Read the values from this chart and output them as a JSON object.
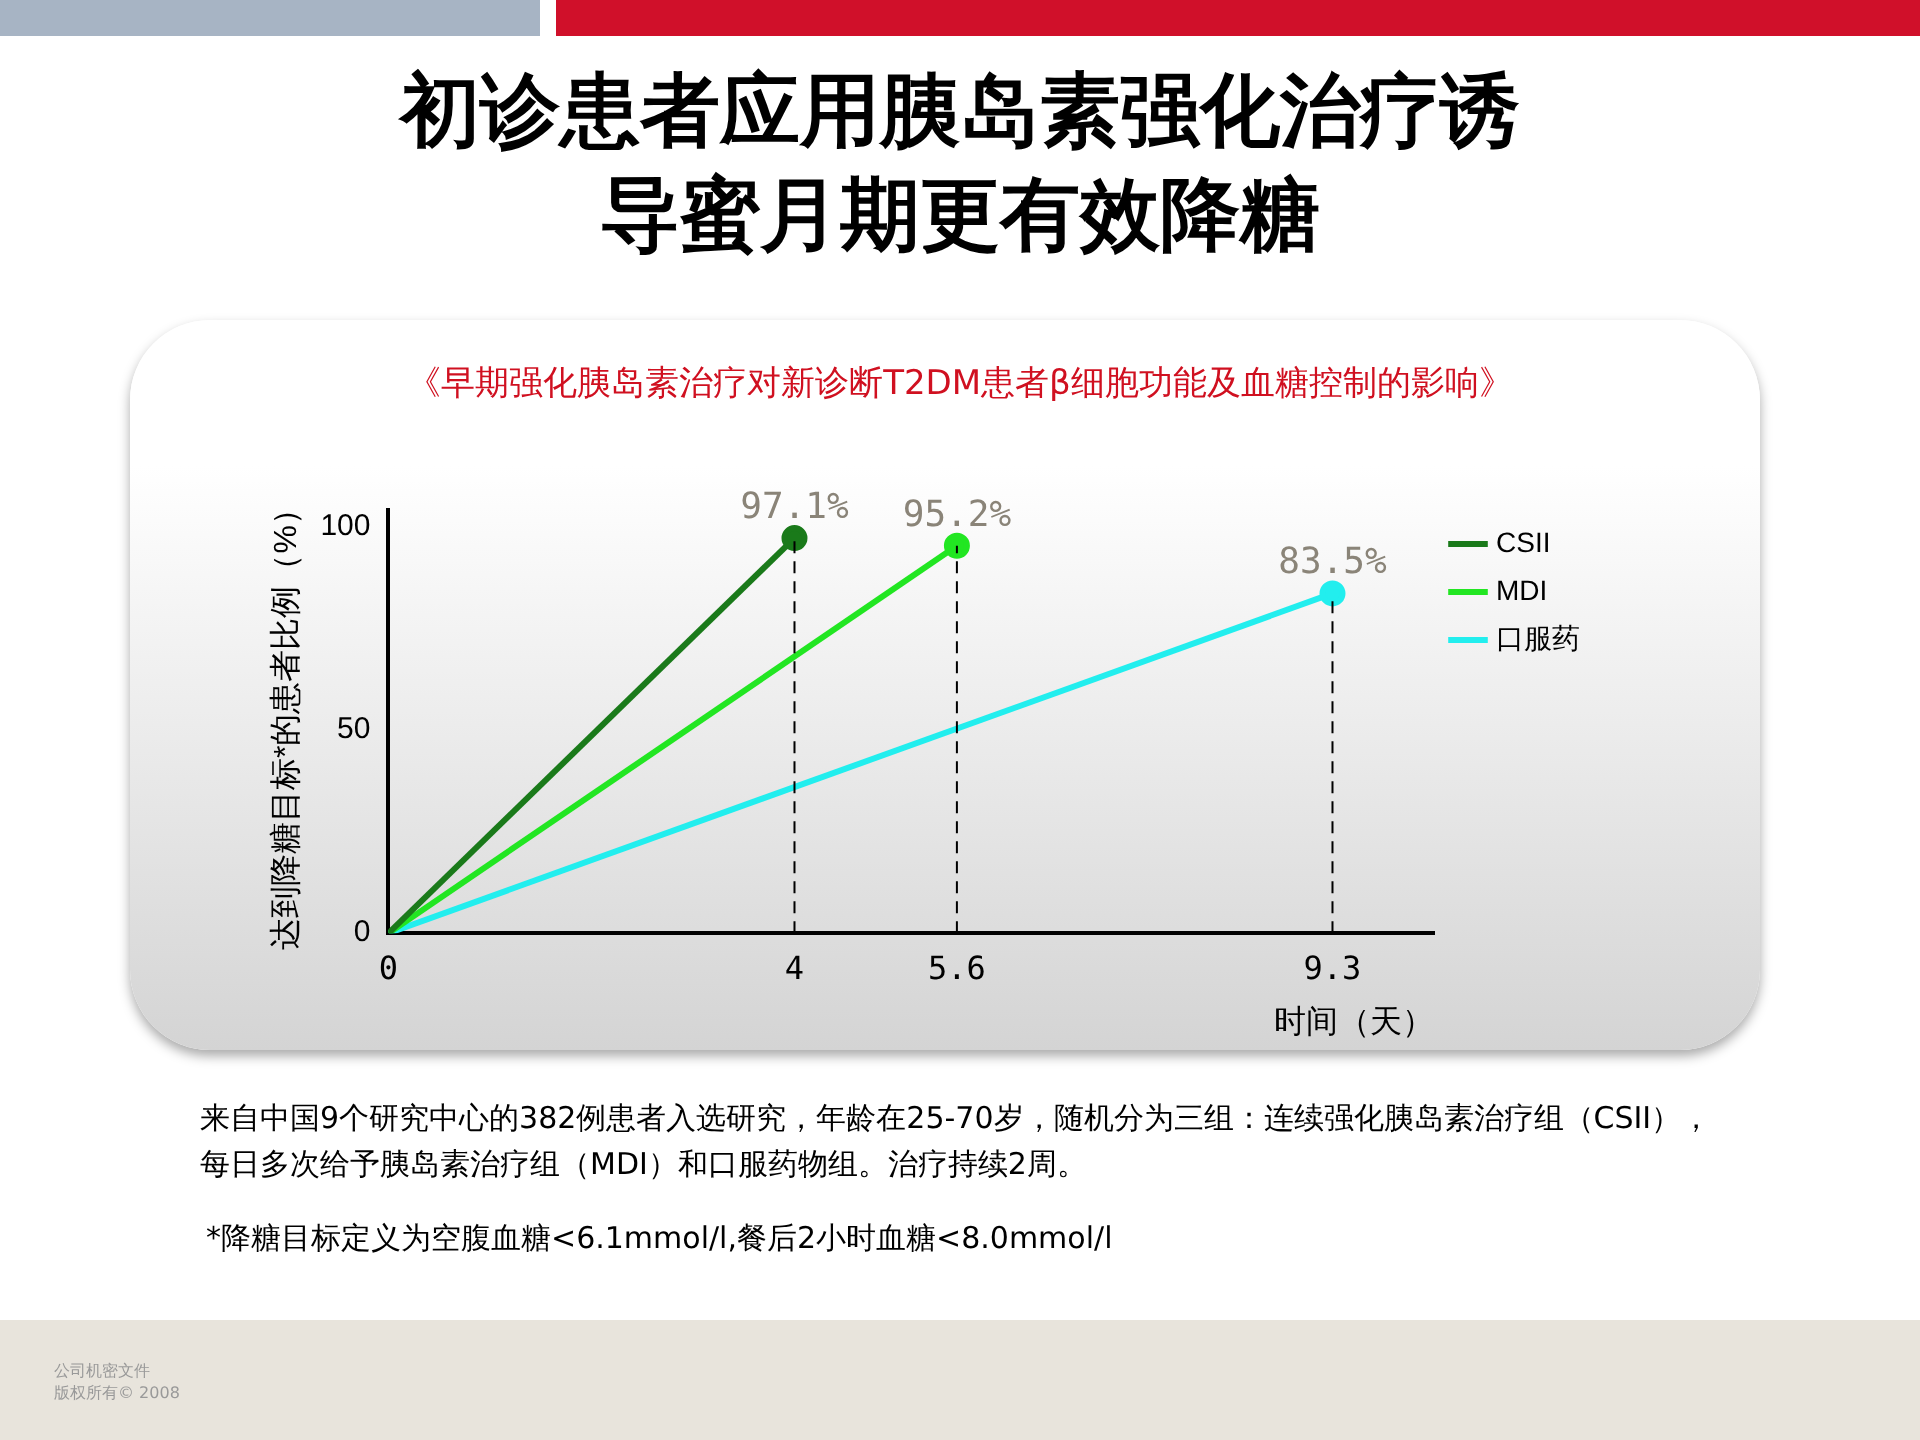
{
  "chart_data": {
    "type": "line",
    "title": "初诊患者应用胰岛素强化治疗诱导蜜月期更有效降糖",
    "subtitle": "《早期强化胰岛素治疗对新诊断T2DM患者β细胞功能及血糖控制的影响》",
    "xlabel": "时间（天）",
    "ylabel": "达到降糖目标*的患者比例（%）",
    "series": [
      {
        "name": "CSII",
        "color": "#1a7a1a",
        "x": [
          0,
          4
        ],
        "values": [
          0,
          97.1
        ],
        "value_labels": [
          null,
          "97.1%"
        ]
      },
      {
        "name": "MDI",
        "color": "#22e622",
        "x": [
          0,
          5.6
        ],
        "values": [
          0,
          95.2
        ],
        "value_labels": [
          null,
          "95.2%"
        ]
      },
      {
        "name": "口服药",
        "color": "#22eeee",
        "x": [
          0,
          9.3
        ],
        "values": [
          0,
          83.5
        ],
        "value_labels": [
          null,
          "83.5%"
        ]
      }
    ],
    "xlim": [
      0,
      10.3
    ],
    "xticks": [
      0,
      4,
      5.6,
      9.3
    ],
    "ylim": [
      0,
      104
    ],
    "yticks": [
      0,
      50,
      100
    ],
    "grid": false,
    "legend": "top right",
    "marker": "circle",
    "line_style": "solid",
    "ref_lines": [
      {
        "axis": "x",
        "value": 4,
        "line_style": "dashed",
        "color": "#000000"
      },
      {
        "axis": "x",
        "value": 5.6,
        "line_style": "dashed",
        "color": "#000000"
      },
      {
        "axis": "x",
        "value": 9.3,
        "line_style": "dashed",
        "color": "#000000"
      }
    ],
    "annotations": [
      "来自中国9个研究中心的382例患者入选研究，年龄在25-70岁，随机分为三组：连续强化胰岛素治疗组（CSII），每日多次给予胰岛素治疗组（MDI）和口服药物组。治疗持续2周。",
      "*降糖目标定义为空腹血糖<6.1mmol/l,餐后2小时血糖<8.0mmol/l",
      "公司机密文件",
      "版权所有© 2008"
    ]
  }
}
